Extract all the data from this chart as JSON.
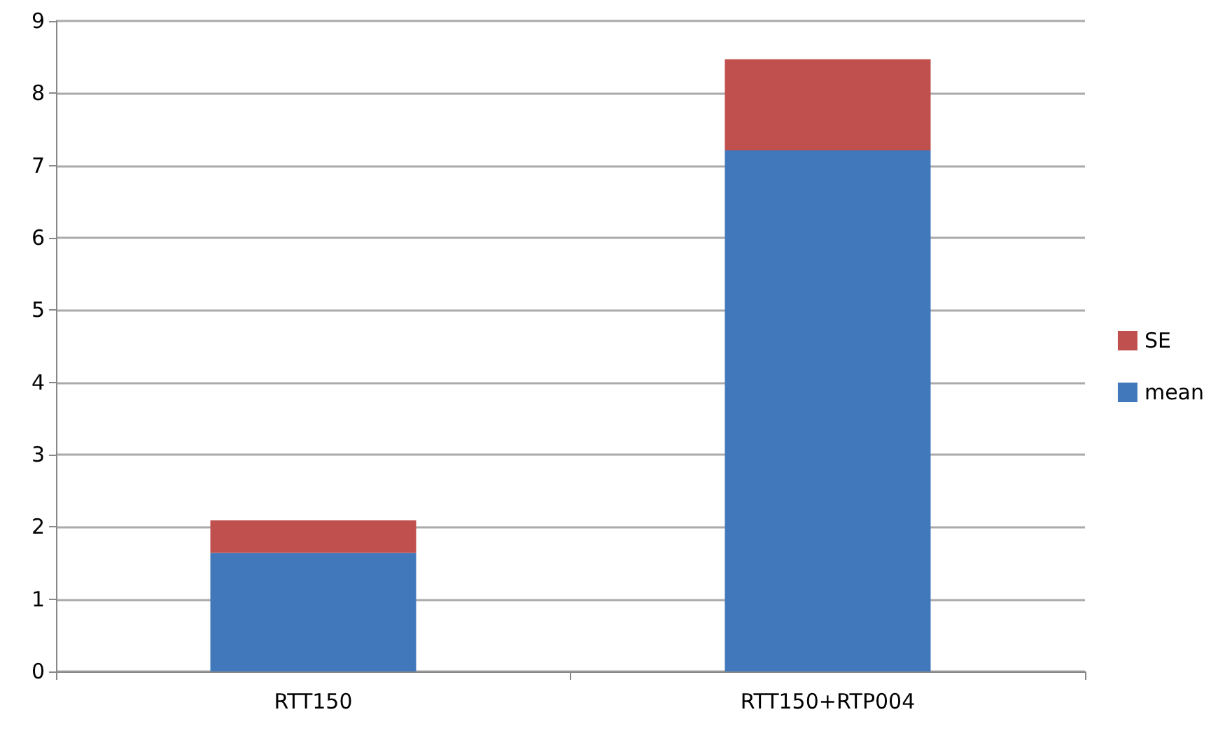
{
  "chart_data": {
    "type": "bar",
    "stacked": true,
    "categories": [
      "RTT150",
      "RTT150+RTP004"
    ],
    "series": [
      {
        "name": "mean",
        "color": "#4178bc",
        "values": [
          1.64,
          7.21
        ]
      },
      {
        "name": "SE",
        "color": "#c0504d",
        "values": [
          0.45,
          1.26
        ]
      }
    ],
    "ylim": [
      0,
      9
    ],
    "yticks": [
      0,
      1,
      2,
      3,
      4,
      5,
      6,
      7,
      8,
      9
    ],
    "grid": "y",
    "legend": "right"
  }
}
